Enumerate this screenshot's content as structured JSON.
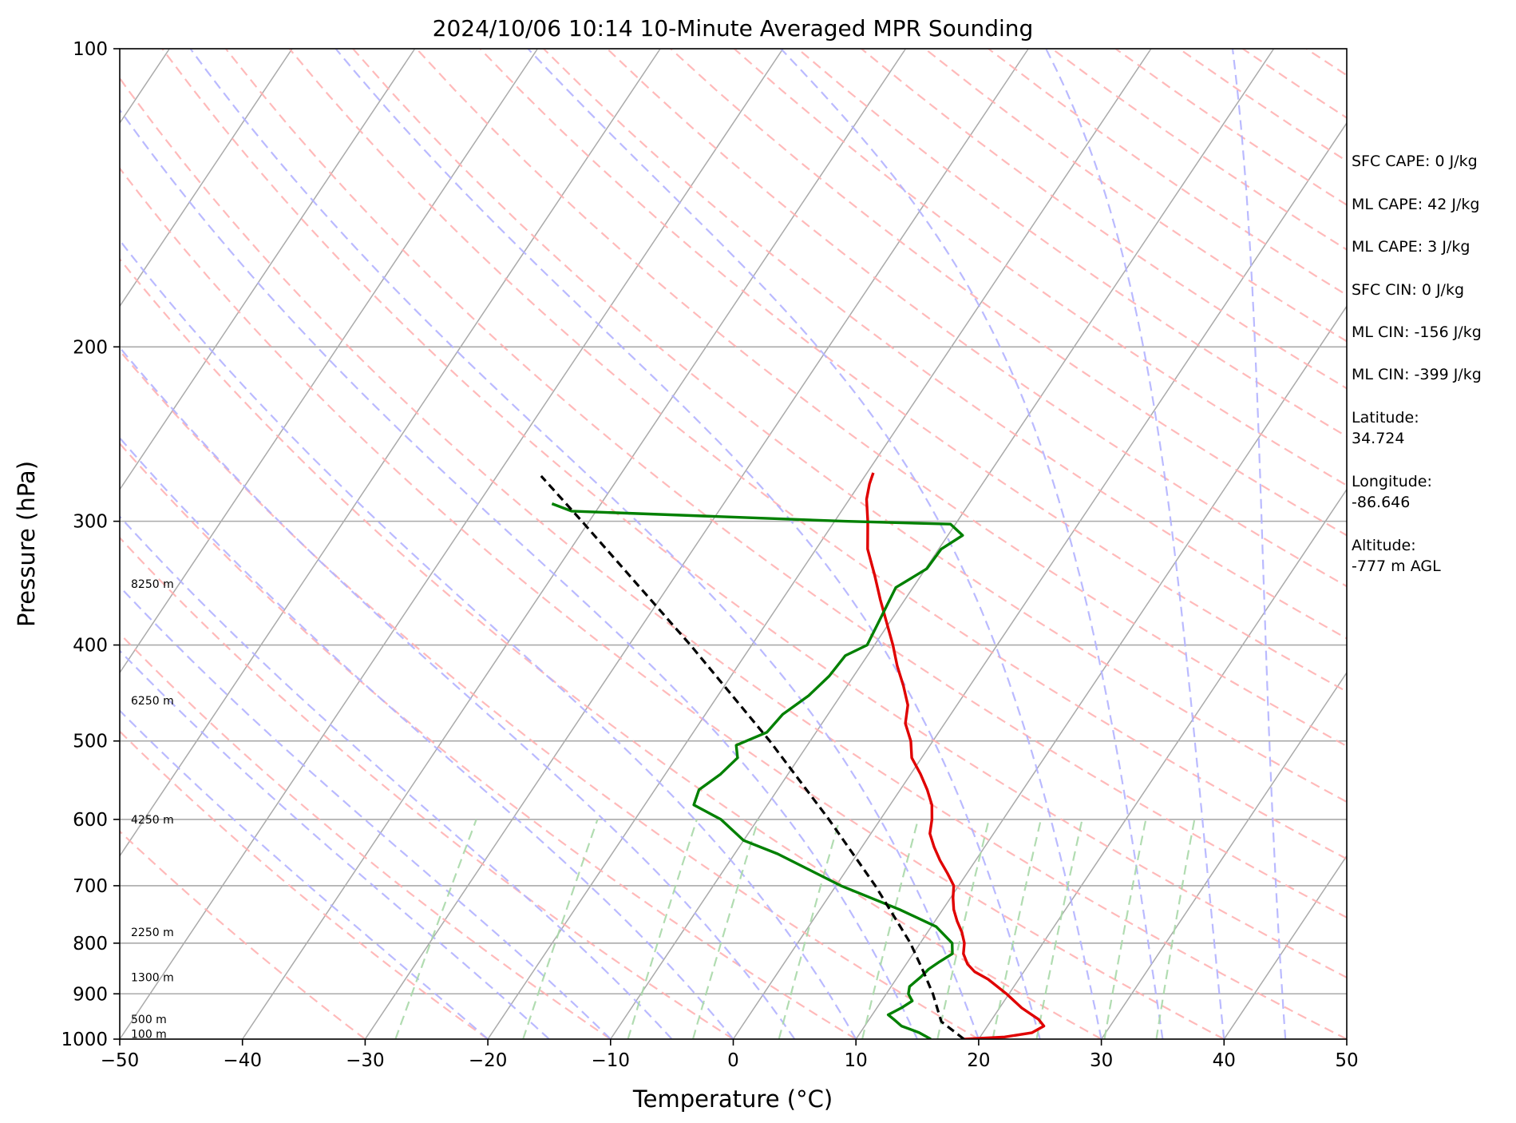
{
  "chart_data": {
    "type": "line",
    "title": "2024/10/06 10:14 10-Minute Averaged MPR Sounding",
    "xlabel": "Temperature (°C)",
    "ylabel": "Pressure (hPa)",
    "xlim": [
      -50,
      50
    ],
    "ylim": [
      1000,
      100
    ],
    "y_scale": "log",
    "skew_t": true,
    "grid": true,
    "x_ticks": [
      "−50",
      "−40",
      "−30",
      "−20",
      "−10",
      "0",
      "10",
      "20",
      "30",
      "40",
      "50"
    ],
    "y_ticks": [
      "100",
      "200",
      "300",
      "400",
      "500",
      "600",
      "700",
      "800",
      "900",
      "1000"
    ],
    "height_labels": [
      "100 m",
      "500 m",
      "1300 m",
      "2250 m",
      "4250 m",
      "6250 m",
      "8250 m"
    ],
    "series": [
      {
        "key": "temperature",
        "color": "#e00000",
        "style": "solid",
        "points": [
          [
            1000,
            18.8
          ],
          [
            995,
            22.0
          ],
          [
            985,
            24.0
          ],
          [
            970,
            24.6
          ],
          [
            955,
            23.8
          ],
          [
            930,
            21.8
          ],
          [
            900,
            19.8
          ],
          [
            870,
            17.5
          ],
          [
            855,
            16.0
          ],
          [
            840,
            15.0
          ],
          [
            820,
            14.1
          ],
          [
            800,
            13.6
          ],
          [
            780,
            12.8
          ],
          [
            760,
            11.8
          ],
          [
            740,
            10.9
          ],
          [
            720,
            10.2
          ],
          [
            700,
            9.6
          ],
          [
            680,
            8.4
          ],
          [
            660,
            7.1
          ],
          [
            640,
            5.9
          ],
          [
            620,
            4.8
          ],
          [
            600,
            4.2
          ],
          [
            580,
            3.4
          ],
          [
            560,
            2.2
          ],
          [
            540,
            0.8
          ],
          [
            520,
            -0.8
          ],
          [
            500,
            -1.8
          ],
          [
            480,
            -3.2
          ],
          [
            460,
            -4.0
          ],
          [
            440,
            -5.4
          ],
          [
            420,
            -7.0
          ],
          [
            400,
            -8.5
          ],
          [
            380,
            -10.2
          ],
          [
            360,
            -12.0
          ],
          [
            340,
            -13.8
          ],
          [
            320,
            -15.8
          ],
          [
            300,
            -17.3
          ],
          [
            285,
            -18.6
          ],
          [
            275,
            -19.2
          ],
          [
            268,
            -19.5
          ]
        ]
      },
      {
        "key": "dewpoint",
        "color": "#008000",
        "style": "solid",
        "points": [
          [
            1000,
            16.1
          ],
          [
            985,
            14.8
          ],
          [
            970,
            13.0
          ],
          [
            955,
            12.0
          ],
          [
            945,
            11.3
          ],
          [
            930,
            12.0
          ],
          [
            915,
            12.5
          ],
          [
            900,
            11.8
          ],
          [
            885,
            11.5
          ],
          [
            865,
            11.9
          ],
          [
            850,
            12.1
          ],
          [
            835,
            12.6
          ],
          [
            820,
            13.2
          ],
          [
            800,
            12.6
          ],
          [
            770,
            10.4
          ],
          [
            740,
            6.5
          ],
          [
            700,
            0.4
          ],
          [
            650,
            -6.5
          ],
          [
            630,
            -10.0
          ],
          [
            600,
            -13.0
          ],
          [
            580,
            -16.0
          ],
          [
            560,
            -16.4
          ],
          [
            540,
            -15.5
          ],
          [
            520,
            -15.0
          ],
          [
            505,
            -15.8
          ],
          [
            490,
            -14.0
          ],
          [
            470,
            -13.7
          ],
          [
            450,
            -12.6
          ],
          [
            430,
            -12.0
          ],
          [
            410,
            -11.8
          ],
          [
            400,
            -10.6
          ],
          [
            380,
            -10.9
          ],
          [
            350,
            -11.4
          ],
          [
            335,
            -9.9
          ],
          [
            320,
            -9.8
          ],
          [
            310,
            -8.8
          ],
          [
            302,
            -10.4
          ],
          [
            300,
            -19.2
          ],
          [
            293,
            -42.0
          ],
          [
            288,
            -44.0
          ]
        ]
      },
      {
        "key": "parcel_profile",
        "color": "#000000",
        "style": "dashed",
        "points": [
          [
            1000,
            18.8
          ],
          [
            960,
            16.0
          ],
          [
            900,
            13.8
          ],
          [
            850,
            11.6
          ],
          [
            800,
            9.2
          ],
          [
            700,
            3.2
          ],
          [
            600,
            -4.2
          ],
          [
            500,
            -13.3
          ],
          [
            400,
            -25.0
          ],
          [
            300,
            -40.6
          ],
          [
            270,
            -46.4
          ]
        ]
      }
    ]
  },
  "annotations": [
    "SFC CAPE: 0 J/kg",
    "ML CAPE: 42 J/kg",
    "ML CAPE: 3 J/kg",
    "SFC CIN: 0 J/kg",
    "ML CIN: -156 J/kg",
    "ML CIN: -399 J/kg",
    "Latitude:",
    "34.724",
    "Longitude:",
    "-86.646",
    "Altitude:",
    "-777 m AGL"
  ]
}
